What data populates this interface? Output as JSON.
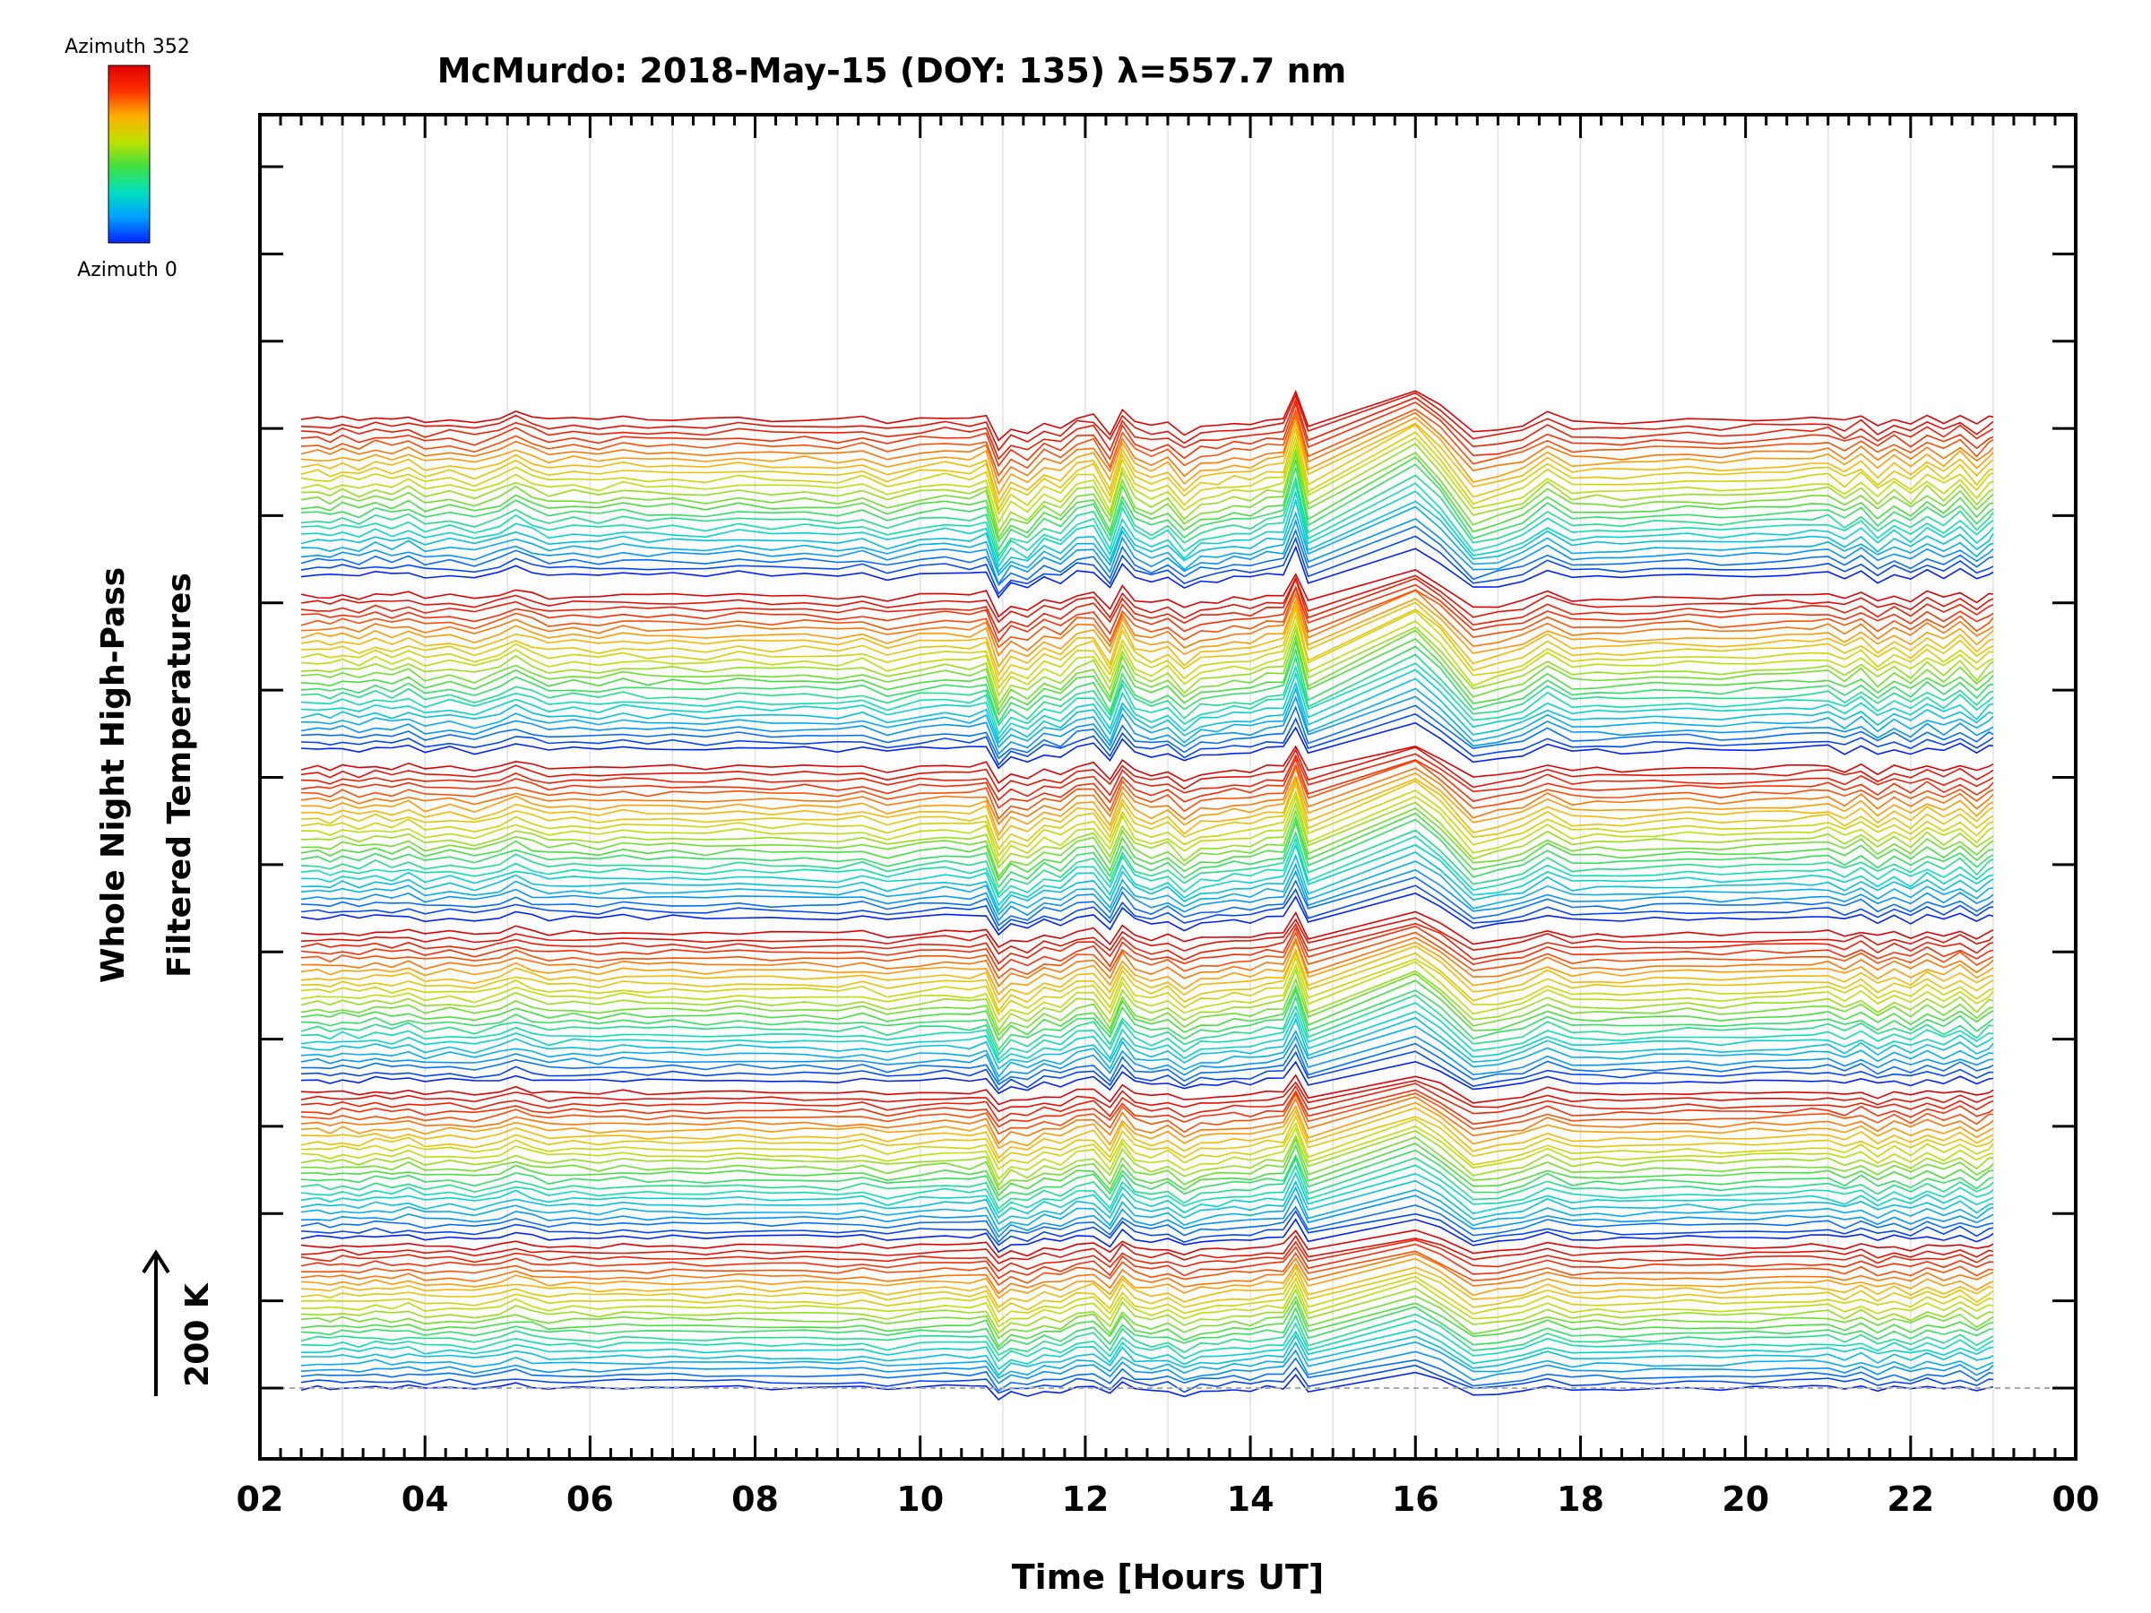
{
  "chart_data": {
    "type": "line",
    "title": "McMurdo: 2018-May-15 (DOY: 135) λ=557.7 nm",
    "xlabel": "Time [Hours UT]",
    "ylabel_line1": "Whole Night High-Pass",
    "ylabel_line2": "Filtered Temperatures",
    "scale_label": "200 K",
    "xlim": [
      2,
      24
    ],
    "x_tick_labels": [
      "02",
      "04",
      "06",
      "08",
      "10",
      "12",
      "14",
      "16",
      "18",
      "20",
      "22",
      "00"
    ],
    "colorbar": {
      "top_label": "Azimuth 352",
      "bottom_label": "Azimuth 0",
      "min": 0,
      "max": 352
    },
    "colormap": [
      "#0022ff",
      "#00a0ff",
      "#00e0c0",
      "#40e040",
      "#c0e000",
      "#ffb000",
      "#ff3000",
      "#e00000"
    ],
    "series_count": 144,
    "series_offset_K": 8.7,
    "sample_times": [
      2.5,
      2.7,
      2.85,
      3.0,
      3.2,
      3.4,
      3.6,
      3.8,
      4.0,
      4.3,
      4.6,
      4.9,
      5.1,
      5.3,
      5.5,
      5.8,
      6.1,
      6.4,
      6.7,
      7.0,
      7.4,
      7.8,
      8.2,
      8.6,
      9.0,
      9.3,
      9.6,
      10.0,
      10.3,
      10.6,
      10.8,
      10.95,
      11.1,
      11.3,
      11.5,
      11.7,
      11.9,
      12.1,
      12.3,
      12.45,
      12.6,
      12.8,
      13.0,
      13.2,
      13.4,
      13.6,
      13.8,
      14.0,
      14.2,
      14.4,
      14.55,
      14.7,
      16.0,
      16.3,
      16.7,
      17.0,
      17.3,
      17.6,
      17.9,
      18.2,
      18.5,
      18.9,
      19.3,
      19.7,
      20.1,
      20.5,
      20.8,
      21.0,
      21.2,
      21.4,
      21.6,
      21.8,
      22.0,
      22.2,
      22.4,
      22.6,
      22.8,
      22.95,
      23.0
    ],
    "shared_signal_K": [
      0,
      1,
      -1,
      2,
      -1,
      3,
      0,
      4,
      -2,
      1,
      -3,
      2,
      8,
      3,
      -1,
      1,
      -1,
      2,
      0,
      1,
      -1,
      2,
      0,
      1,
      -1,
      2,
      -4,
      1,
      3,
      1,
      5,
      -22,
      -10,
      -15,
      -4,
      -8,
      3,
      5,
      -14,
      12,
      -3,
      -8,
      -3,
      -15,
      -7,
      -6,
      -3,
      -4,
      1,
      2,
      28,
      -6,
      30,
      14,
      -14,
      -10,
      -5,
      6,
      -3,
      -2,
      -3,
      -1,
      0,
      -2,
      0,
      1,
      2,
      3,
      -3,
      4,
      -6,
      2,
      -5,
      4,
      -3,
      5,
      -6,
      2,
      4
    ],
    "series": [
      {
        "azimuth": 0,
        "values": [
          -5,
          -3,
          -6,
          0,
          -4,
          1,
          -3,
          2,
          -5,
          -1,
          -5,
          0,
          6,
          1,
          -3,
          -1,
          -3,
          0,
          -2,
          -1,
          -3,
          0,
          -2,
          -1,
          -3,
          0,
          -6,
          -1,
          1,
          -1,
          3,
          -25,
          -13,
          -18,
          -7,
          -11,
          0,
          2,
          -17,
          9,
          -6,
          -11,
          -6,
          -18,
          -10,
          -9,
          -6,
          -7,
          -2,
          -1,
          25,
          -9,
          27,
          11,
          -17,
          -13,
          -8,
          3,
          -6,
          -5,
          -6,
          -4,
          -3,
          -5,
          -3,
          -2,
          -1,
          0,
          -6,
          1,
          -9,
          -1,
          -8,
          1,
          -6,
          2,
          -9,
          -1,
          1
        ]
      },
      {
        "azimuth": 176,
        "values": [
          0,
          1,
          -1,
          2,
          -1,
          3,
          0,
          4,
          -2,
          1,
          -3,
          2,
          8,
          3,
          -1,
          1,
          -1,
          2,
          0,
          1,
          -1,
          2,
          0,
          1,
          -1,
          2,
          -4,
          1,
          3,
          1,
          5,
          -22,
          -10,
          -15,
          -4,
          -8,
          3,
          5,
          -14,
          12,
          -3,
          -8,
          -3,
          -15,
          -7,
          -6,
          -3,
          -4,
          1,
          2,
          28,
          -6,
          30,
          14,
          -14,
          -10,
          -5,
          6,
          -3,
          -2,
          -3,
          -1,
          0,
          -2,
          0,
          1,
          2,
          3,
          -3,
          4,
          -6,
          2,
          -5,
          4,
          -3,
          5,
          -6,
          2,
          4
        ]
      },
      {
        "azimuth": 352,
        "values": [
          3,
          4,
          2,
          5,
          2,
          6,
          3,
          7,
          1,
          4,
          0,
          5,
          11,
          6,
          2,
          4,
          2,
          5,
          3,
          4,
          2,
          5,
          3,
          4,
          2,
          5,
          -1,
          4,
          6,
          4,
          8,
          -19,
          -7,
          -12,
          -1,
          -5,
          6,
          8,
          -11,
          15,
          0,
          -5,
          0,
          -12,
          -4,
          -3,
          0,
          -1,
          4,
          5,
          31,
          -3,
          33,
          17,
          -11,
          -7,
          -2,
          9,
          0,
          1,
          0,
          2,
          3,
          1,
          3,
          4,
          5,
          6,
          0,
          7,
          -3,
          5,
          -2,
          7,
          0,
          8,
          -3,
          5,
          7
        ]
      }
    ]
  }
}
